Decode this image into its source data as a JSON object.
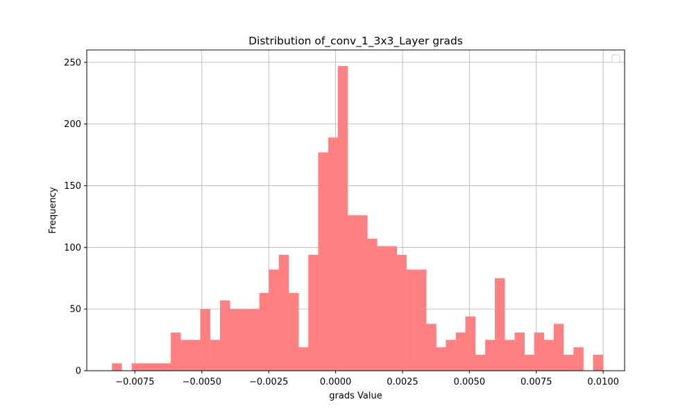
{
  "chart_data": {
    "type": "bar",
    "title": "Distribution of_conv_1_3x3_Layer grads",
    "xlabel": "grads Value",
    "ylabel": "Frequency",
    "xlim": [
      -0.0093,
      0.0108
    ],
    "ylim": [
      0,
      260
    ],
    "grid": true,
    "legend": "top-right, empty",
    "bar_color": "#ff8080",
    "bin_width": 0.000367,
    "bins": [
      {
        "x0": -0.00836,
        "count": 6
      },
      {
        "x0": -0.00799,
        "count": 0
      },
      {
        "x0": -0.00762,
        "count": 6
      },
      {
        "x0": -0.00726,
        "count": 6
      },
      {
        "x0": -0.00689,
        "count": 6
      },
      {
        "x0": -0.00652,
        "count": 6
      },
      {
        "x0": -0.00616,
        "count": 31
      },
      {
        "x0": -0.00579,
        "count": 25
      },
      {
        "x0": -0.00542,
        "count": 25
      },
      {
        "x0": -0.00506,
        "count": 50
      },
      {
        "x0": -0.00469,
        "count": 25
      },
      {
        "x0": -0.00432,
        "count": 57
      },
      {
        "x0": -0.00395,
        "count": 50
      },
      {
        "x0": -0.00359,
        "count": 50
      },
      {
        "x0": -0.00322,
        "count": 50
      },
      {
        "x0": -0.00285,
        "count": 63
      },
      {
        "x0": -0.00249,
        "count": 82
      },
      {
        "x0": -0.00212,
        "count": 94
      },
      {
        "x0": -0.00175,
        "count": 63
      },
      {
        "x0": -0.00139,
        "count": 19
      },
      {
        "x0": -0.00102,
        "count": 94
      },
      {
        "x0": -0.00065,
        "count": 177
      },
      {
        "x0": -0.00028,
        "count": 189
      },
      {
        "x0": 8e-05,
        "count": 247
      },
      {
        "x0": 0.00045,
        "count": 126
      },
      {
        "x0": 0.00082,
        "count": 126
      },
      {
        "x0": 0.00118,
        "count": 107
      },
      {
        "x0": 0.00155,
        "count": 101
      },
      {
        "x0": 0.00192,
        "count": 101
      },
      {
        "x0": 0.00228,
        "count": 94
      },
      {
        "x0": 0.00265,
        "count": 82
      },
      {
        "x0": 0.00302,
        "count": 82
      },
      {
        "x0": 0.00339,
        "count": 38
      },
      {
        "x0": 0.00375,
        "count": 19
      },
      {
        "x0": 0.00412,
        "count": 25
      },
      {
        "x0": 0.00449,
        "count": 31
      },
      {
        "x0": 0.00485,
        "count": 44
      },
      {
        "x0": 0.00522,
        "count": 13
      },
      {
        "x0": 0.00559,
        "count": 25
      },
      {
        "x0": 0.00595,
        "count": 75
      },
      {
        "x0": 0.00632,
        "count": 25
      },
      {
        "x0": 0.00669,
        "count": 31
      },
      {
        "x0": 0.00705,
        "count": 13
      },
      {
        "x0": 0.00742,
        "count": 31
      },
      {
        "x0": 0.00779,
        "count": 25
      },
      {
        "x0": 0.00815,
        "count": 38
      },
      {
        "x0": 0.00852,
        "count": 13
      },
      {
        "x0": 0.00889,
        "count": 19
      },
      {
        "x0": 0.00925,
        "count": 0
      },
      {
        "x0": 0.00962,
        "count": 13
      }
    ],
    "x_ticks": [
      {
        "value": -0.0075,
        "label": "−0.0075"
      },
      {
        "value": -0.005,
        "label": "−0.0050"
      },
      {
        "value": -0.0025,
        "label": "−0.0025"
      },
      {
        "value": 0.0,
        "label": "0.0000"
      },
      {
        "value": 0.0025,
        "label": "0.0025"
      },
      {
        "value": 0.005,
        "label": "0.0050"
      },
      {
        "value": 0.0075,
        "label": "0.0075"
      },
      {
        "value": 0.01,
        "label": "0.0100"
      }
    ],
    "y_ticks": [
      {
        "value": 0,
        "label": "0"
      },
      {
        "value": 50,
        "label": "50"
      },
      {
        "value": 100,
        "label": "100"
      },
      {
        "value": 150,
        "label": "150"
      },
      {
        "value": 200,
        "label": "200"
      },
      {
        "value": 250,
        "label": "250"
      }
    ]
  }
}
